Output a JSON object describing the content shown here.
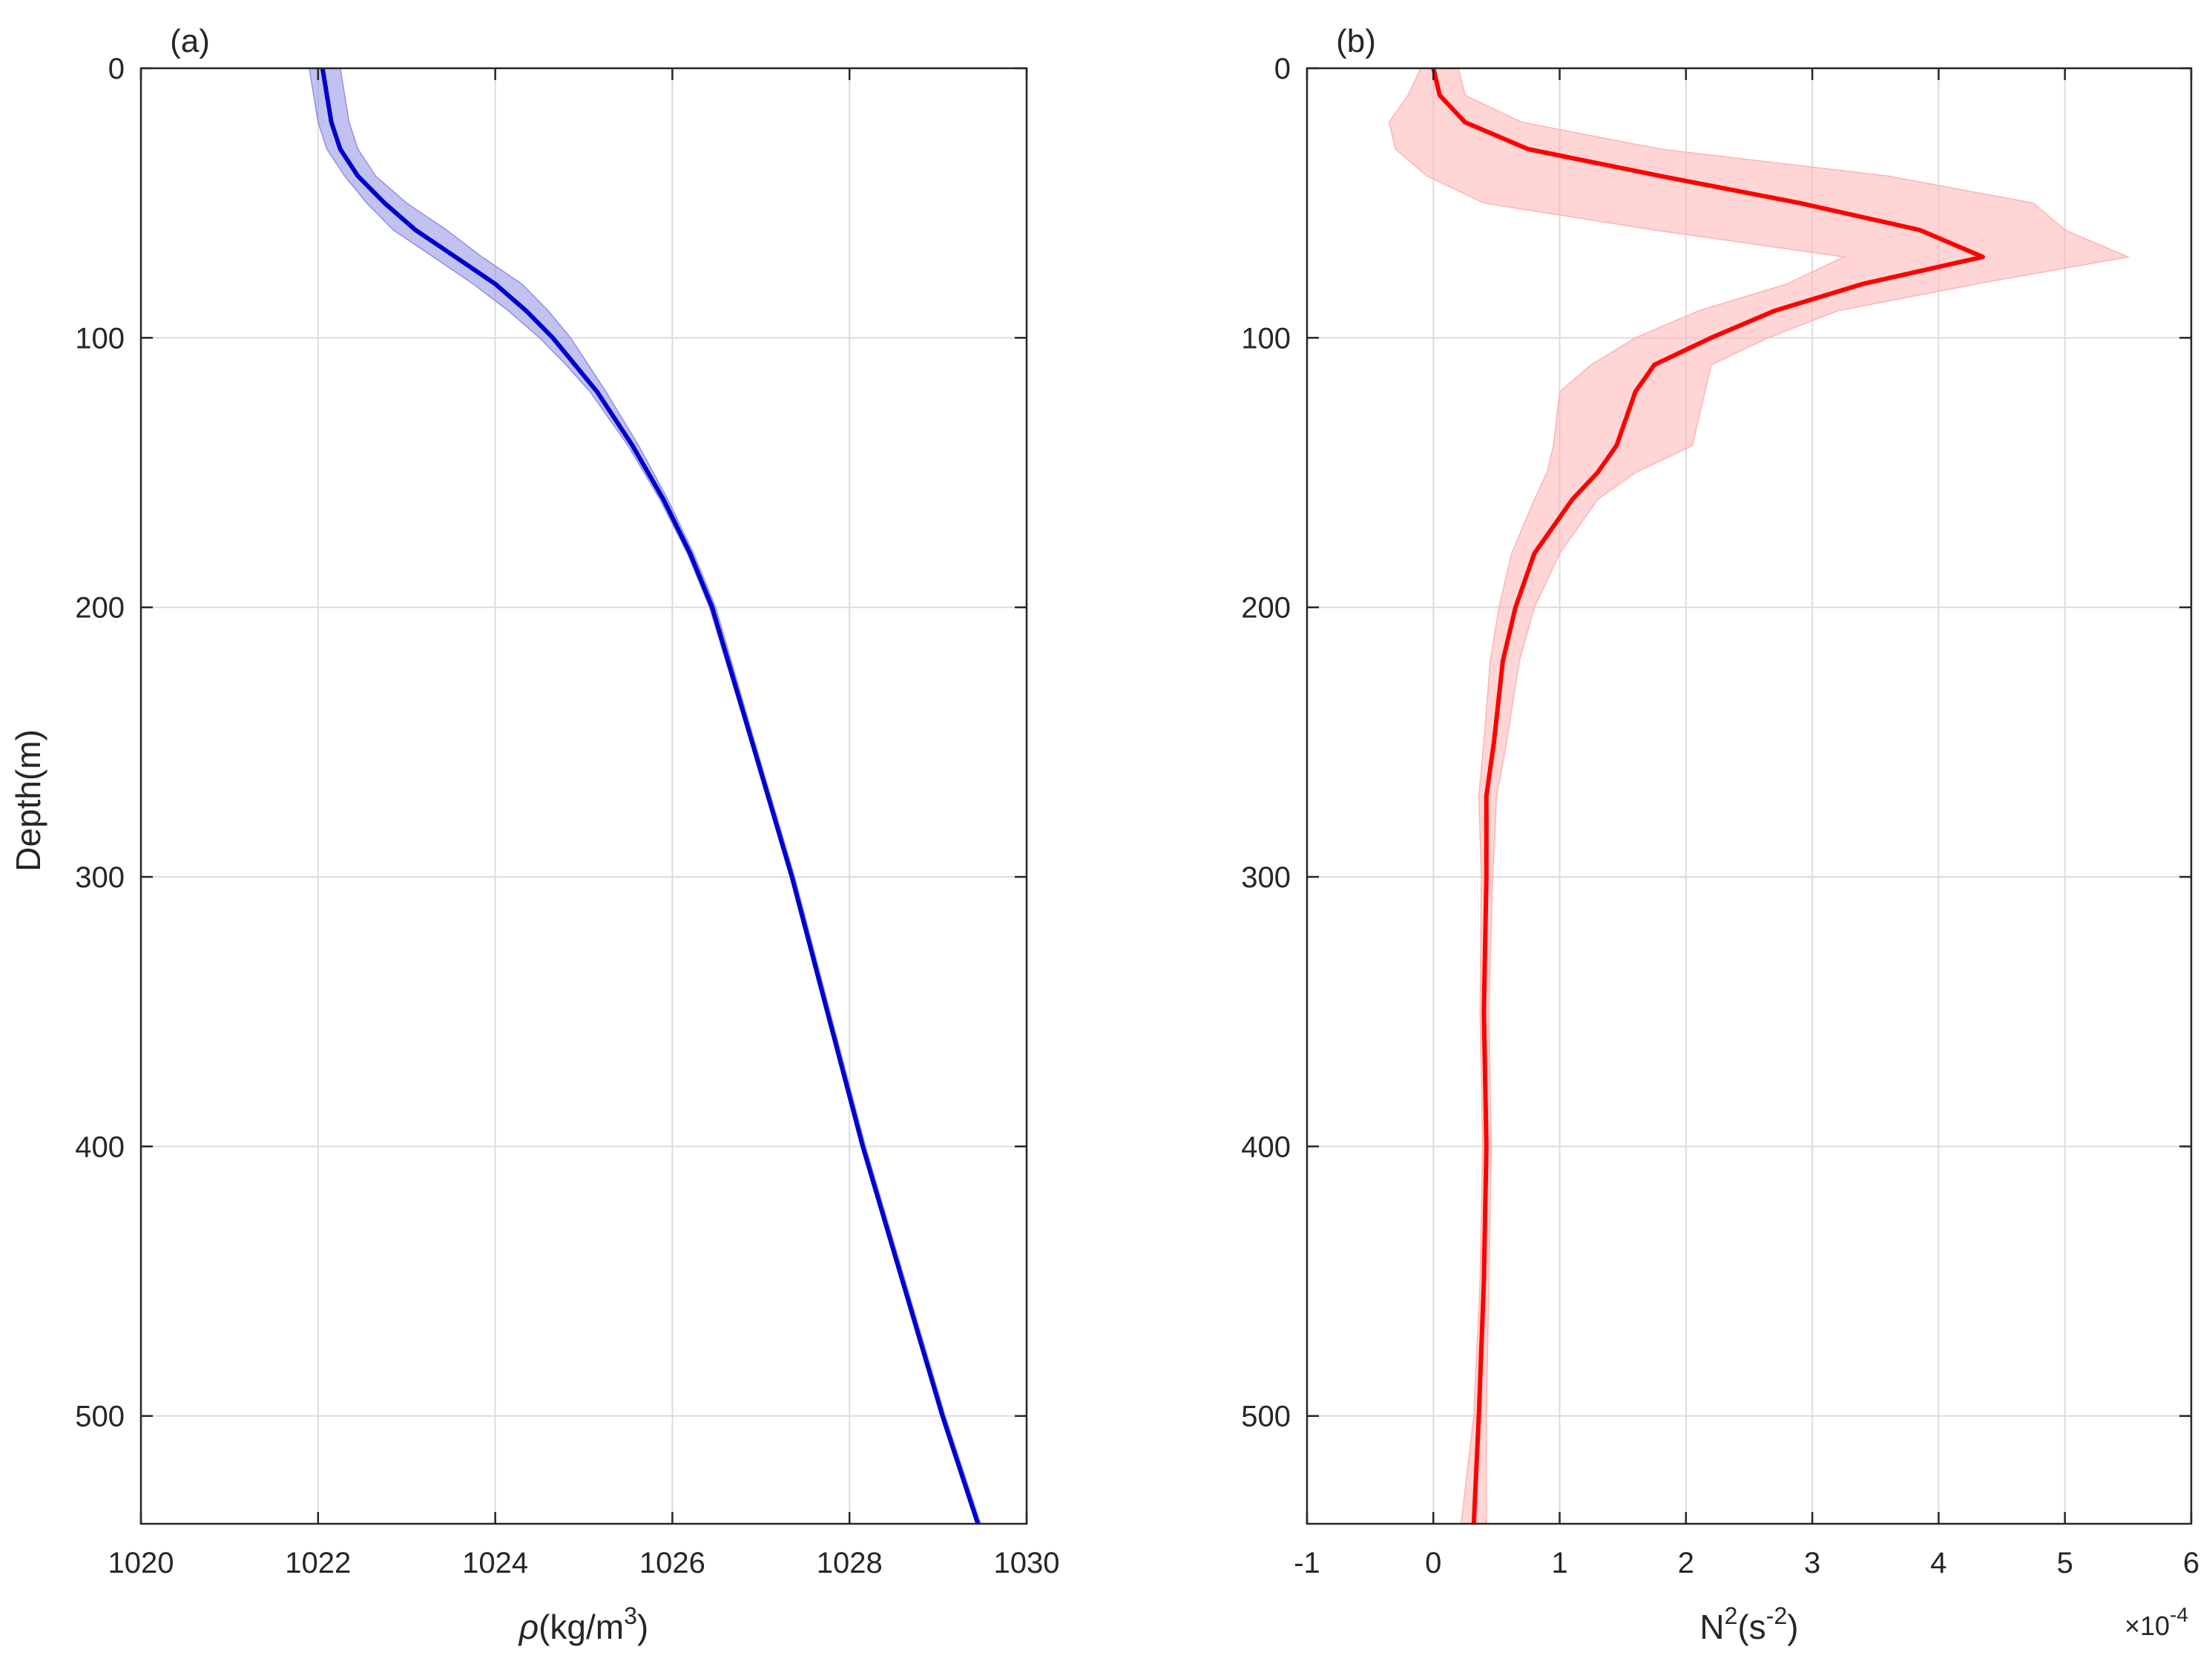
{
  "chart_data": [
    {
      "type": "line",
      "panel_label": "(a)",
      "xlabel": "ρ(kg/m3)",
      "xlabel_parts": {
        "symbol": "ρ",
        "base": "(kg/m",
        "sup": "3",
        "tail": ")"
      },
      "ylabel": "Depth(m)",
      "xlim": [
        1020,
        1030
      ],
      "ylim": [
        0,
        540
      ],
      "y_reversed": true,
      "xticks": [
        1020,
        1022,
        1024,
        1026,
        1028,
        1030
      ],
      "yticks": [
        0,
        100,
        200,
        300,
        400,
        500
      ],
      "grid": true,
      "colors": {
        "line": "#0000cc",
        "band": "#8f8fe6"
      },
      "series": [
        {
          "style": "mean_with_band",
          "depth": [
            0,
            10,
            20,
            30,
            40,
            50,
            60,
            70,
            80,
            90,
            100,
            110,
            120,
            140,
            160,
            180,
            200,
            250,
            300,
            350,
            400,
            450,
            500,
            540
          ],
          "mean": [
            1022.05,
            1022.1,
            1022.15,
            1022.25,
            1022.45,
            1022.75,
            1023.1,
            1023.55,
            1024.0,
            1024.35,
            1024.65,
            1024.9,
            1025.15,
            1025.55,
            1025.9,
            1026.2,
            1026.45,
            1026.9,
            1027.35,
            1027.75,
            1028.15,
            1028.6,
            1029.05,
            1029.45
          ],
          "lower": [
            1021.9,
            1021.95,
            1022.0,
            1022.1,
            1022.3,
            1022.55,
            1022.85,
            1023.3,
            1023.75,
            1024.15,
            1024.5,
            1024.8,
            1025.07,
            1025.5,
            1025.86,
            1026.17,
            1026.42,
            1026.88,
            1027.33,
            1027.73,
            1028.13,
            1028.58,
            1029.03,
            1029.43
          ],
          "upper": [
            1022.25,
            1022.3,
            1022.35,
            1022.45,
            1022.65,
            1023.0,
            1023.45,
            1023.85,
            1024.3,
            1024.6,
            1024.85,
            1025.05,
            1025.25,
            1025.62,
            1025.95,
            1026.24,
            1026.49,
            1026.93,
            1027.38,
            1027.78,
            1028.18,
            1028.63,
            1029.08,
            1029.48
          ]
        }
      ]
    },
    {
      "type": "line",
      "panel_label": "(b)",
      "xlabel": "N2(s-2)",
      "xlabel_parts": {
        "base": "N",
        "sup1": "2",
        "mid": "(s",
        "sup2": "-2",
        "tail": ")"
      },
      "x_multiplier": {
        "base": "×10",
        "exp": "-4"
      },
      "xlim": [
        -1,
        6
      ],
      "ylim": [
        0,
        540
      ],
      "y_reversed": true,
      "xticks": [
        -1,
        0,
        1,
        2,
        3,
        4,
        5,
        6
      ],
      "yticks": [
        0,
        100,
        200,
        300,
        400,
        500
      ],
      "grid": true,
      "colors": {
        "line": "#ff0000",
        "band": "#ffb3b3"
      },
      "series": [
        {
          "style": "mean_with_band",
          "depth": [
            0,
            10,
            20,
            30,
            40,
            50,
            60,
            70,
            80,
            90,
            100,
            110,
            120,
            140,
            150,
            160,
            180,
            200,
            220,
            250,
            270,
            300,
            350,
            400,
            450,
            500,
            540
          ],
          "mean": [
            0.0,
            0.05,
            0.25,
            0.75,
            1.8,
            2.9,
            3.85,
            4.35,
            3.4,
            2.7,
            2.2,
            1.75,
            1.6,
            1.45,
            1.3,
            1.1,
            0.8,
            0.65,
            0.55,
            0.48,
            0.42,
            0.42,
            0.4,
            0.42,
            0.4,
            0.36,
            0.32
          ],
          "lower": [
            -0.1,
            -0.2,
            -0.35,
            -0.3,
            -0.05,
            0.4,
            1.75,
            3.25,
            2.8,
            2.1,
            1.6,
            1.25,
            1.0,
            0.95,
            0.9,
            0.8,
            0.62,
            0.52,
            0.45,
            0.4,
            0.36,
            0.38,
            0.37,
            0.39,
            0.37,
            0.32,
            0.22
          ],
          "upper": [
            0.2,
            0.25,
            0.7,
            1.8,
            3.6,
            4.75,
            5.0,
            5.5,
            4.3,
            3.2,
            2.65,
            2.2,
            2.15,
            2.05,
            1.6,
            1.3,
            1.0,
            0.8,
            0.68,
            0.58,
            0.5,
            0.47,
            0.44,
            0.46,
            0.44,
            0.42,
            0.42
          ]
        }
      ]
    }
  ]
}
